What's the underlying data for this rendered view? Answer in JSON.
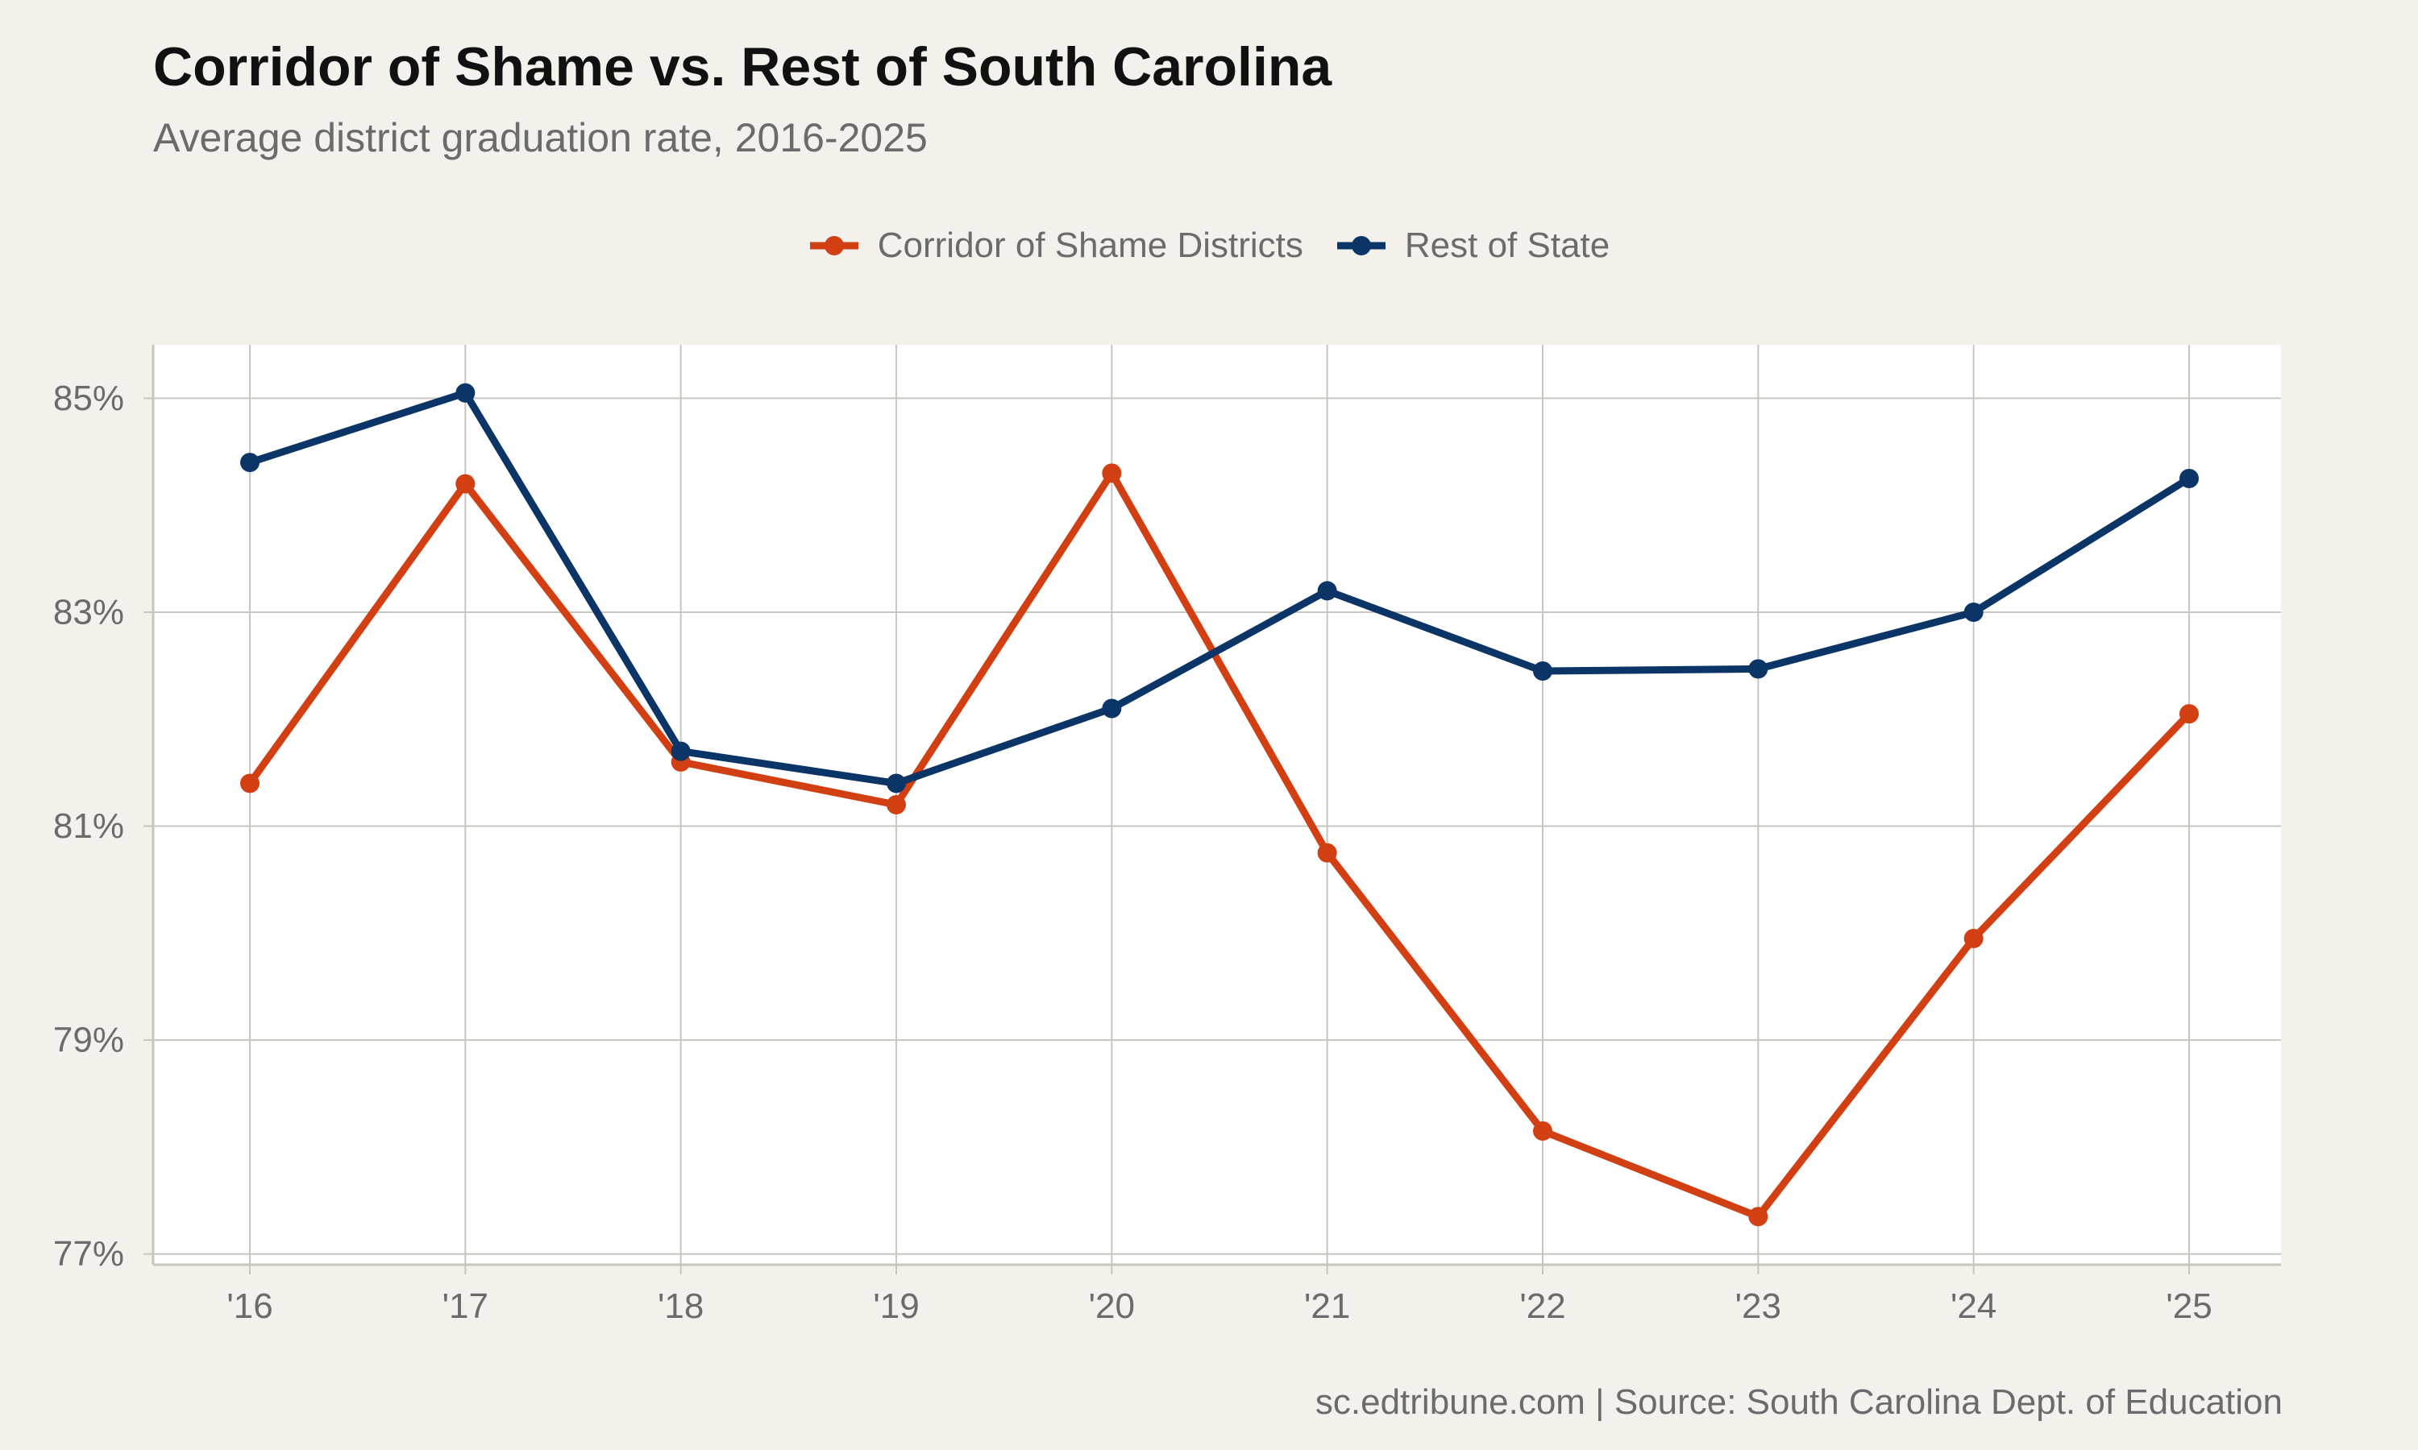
{
  "chart_data": {
    "type": "line",
    "title": "Corridor of Shame vs. Rest of South Carolina",
    "subtitle": "Average district graduation rate, 2016-2025",
    "caption": "sc.edtribune.com | Source: South Carolina Dept. of Education",
    "xlabel": "",
    "ylabel": "",
    "categories": [
      "'16",
      "'17",
      "'18",
      "'19",
      "'20",
      "'21",
      "'22",
      "'23",
      "'24",
      "'25"
    ],
    "ylim": [
      76.9,
      85.5
    ],
    "yticks": [
      77,
      79,
      81,
      83,
      85
    ],
    "ytick_labels": [
      "77%",
      "79%",
      "81%",
      "83%",
      "85%"
    ],
    "grid": true,
    "legend_position": "top",
    "series": [
      {
        "name": "Corridor of Shame Districts",
        "color": "#d13f12",
        "values": [
          81.4,
          84.2,
          81.6,
          81.2,
          84.3,
          80.75,
          78.15,
          77.35,
          79.95,
          82.05
        ]
      },
      {
        "name": "Rest of State",
        "color": "#0b3566",
        "values": [
          84.4,
          85.05,
          81.7,
          81.4,
          82.1,
          83.2,
          82.45,
          82.47,
          83.0,
          84.25
        ]
      }
    ]
  }
}
